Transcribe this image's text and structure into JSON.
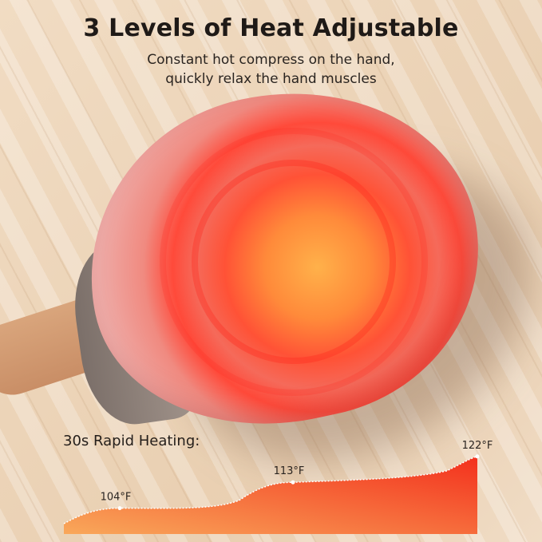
{
  "headline": "3 Levels of Heat Adjustable",
  "subtitle_lines": [
    "Constant hot compress on the hand,",
    "quickly relax the hand muscles"
  ],
  "chart_data": {
    "type": "area",
    "title": "30s Rapid Heating:",
    "points": [
      {
        "label": "104°F",
        "value": 104
      },
      {
        "label": "113°F",
        "value": 113
      },
      {
        "label": "122°F",
        "value": 122
      }
    ],
    "colors": {
      "low": "#f9a85a",
      "high": "#f3301d"
    }
  }
}
